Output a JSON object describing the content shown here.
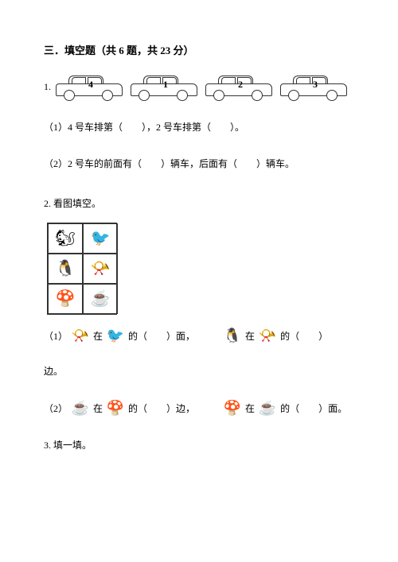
{
  "section": {
    "title": "三．填空题（共 6 题，共 23 分）"
  },
  "q1": {
    "number": "1.",
    "car_numbers": [
      "4",
      "1",
      "2",
      "3"
    ],
    "sub1": "（1）4 号车排第（　　），2 号车排第（　　）。",
    "sub2": "（2）2 号车的前面有（　　）辆车，后面有（　　）辆车。"
  },
  "q2": {
    "number": "2. 看图填空。",
    "grid_icons": [
      "squirrel",
      "bird",
      "face",
      "horn",
      "mushroom",
      "cup"
    ],
    "line1": {
      "prefix": "（1）",
      "mid1": "在",
      "mid2": "的（　　）面，",
      "mid3": "在",
      "mid4": "的（　　）"
    },
    "line1b": "边。",
    "line2": {
      "prefix": "（2）",
      "mid1": "在",
      "mid2": "的（　　）边，",
      "mid3": "在",
      "mid4": "的（　　）面。"
    }
  },
  "q3": {
    "number": "3. 填一填。"
  },
  "icons": {
    "squirrel": "🐿",
    "bird": "🐦",
    "face": "🐧",
    "horn": "📯",
    "mushroom": "🍄",
    "cup": "☕"
  }
}
